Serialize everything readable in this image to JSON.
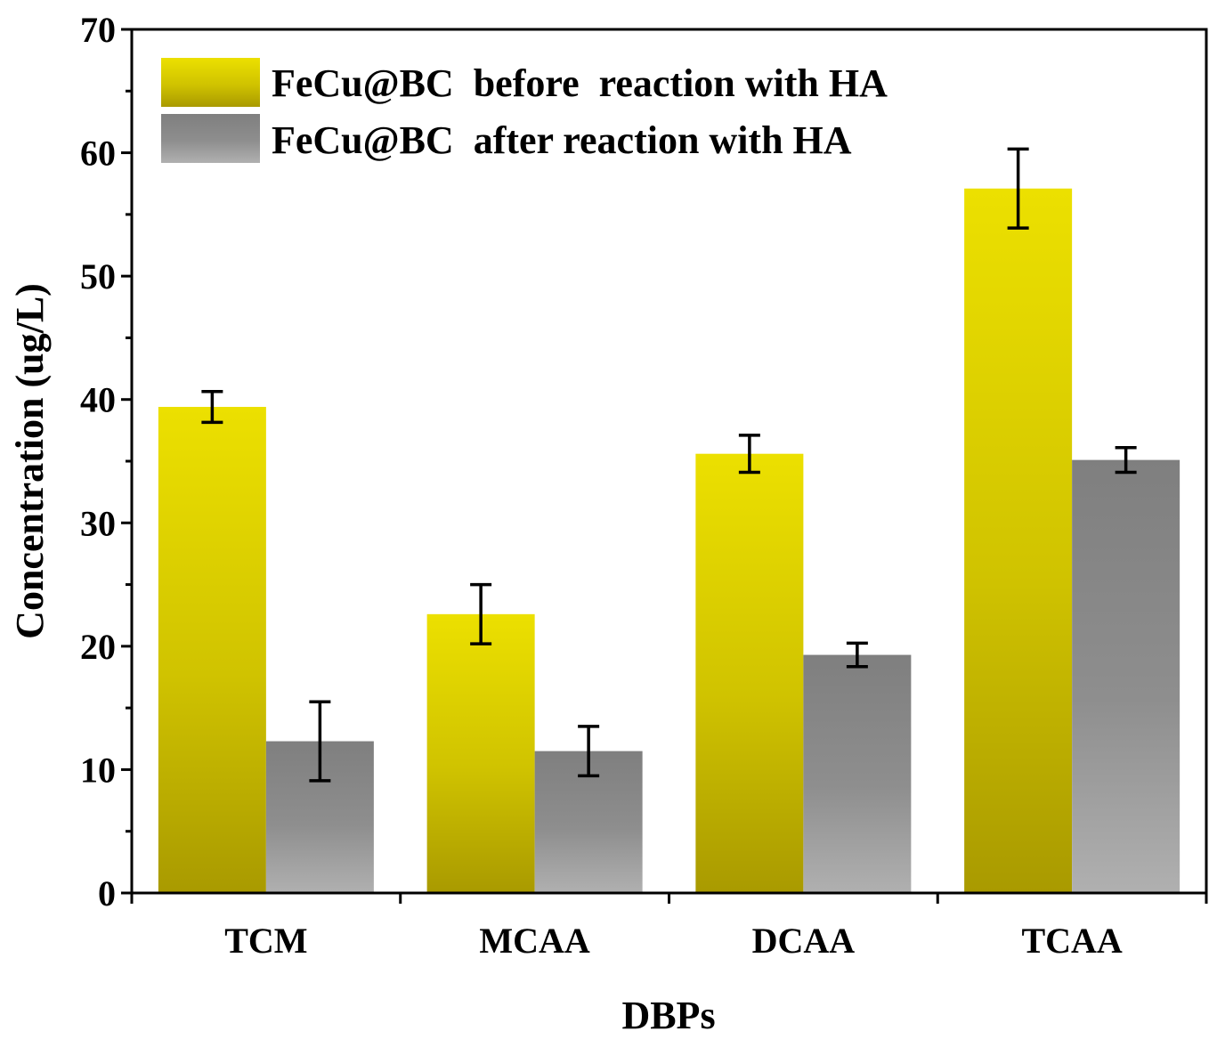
{
  "chart_data": {
    "type": "bar",
    "title": "",
    "xlabel": "DBPs",
    "ylabel": "Concentration (ug/L)",
    "categories": [
      "TCM",
      "MCAA",
      "DCAA",
      "TCAA"
    ],
    "ylim": [
      0,
      70
    ],
    "yticks": [
      0,
      10,
      20,
      30,
      40,
      50,
      60,
      70
    ],
    "grid": false,
    "legend_position": "top-left",
    "series": [
      {
        "name": "FeCu@BC  before  reaction with HA",
        "values": [
          39.4,
          22.6,
          35.6,
          57.1
        ],
        "errors": [
          1.25,
          2.4,
          1.5,
          3.2
        ],
        "color_top": "#ece000",
        "color_bottom": "#a99a00"
      },
      {
        "name": "FeCu@BC  after reaction with HA",
        "values": [
          12.3,
          11.5,
          19.3,
          35.1
        ],
        "errors": [
          3.2,
          2.0,
          0.95,
          1.0
        ],
        "color_top": "#7f7f7f",
        "color_bottom": "#b0b0b0"
      }
    ]
  }
}
